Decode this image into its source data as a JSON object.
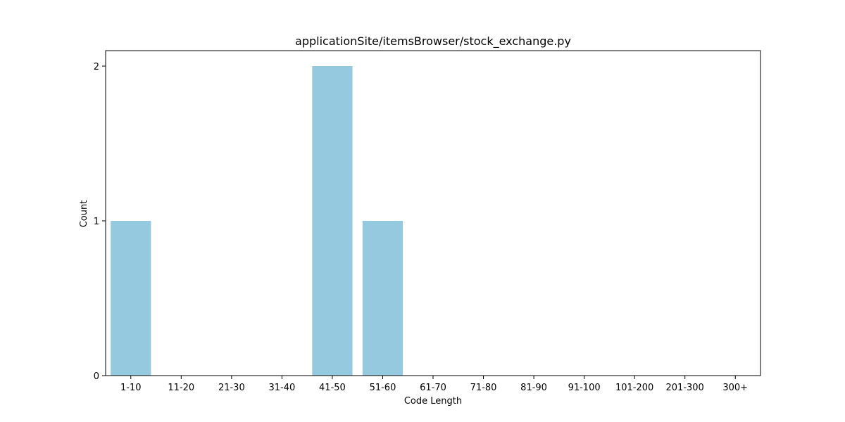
{
  "chart_data": {
    "type": "bar",
    "title": "applicationSite/itemsBrowser/stock_exchange.py",
    "xlabel": "Code Length",
    "ylabel": "Count",
    "categories": [
      "1-10",
      "11-20",
      "21-30",
      "31-40",
      "41-50",
      "51-60",
      "61-70",
      "71-80",
      "81-90",
      "91-100",
      "101-200",
      "201-300",
      "300+"
    ],
    "values": [
      1,
      0,
      0,
      0,
      2,
      1,
      0,
      0,
      0,
      0,
      0,
      0,
      0
    ],
    "ylim": [
      0,
      2.1
    ],
    "yticks": [
      0,
      1,
      2
    ],
    "grid": false,
    "bar_color": "#95c9df"
  }
}
